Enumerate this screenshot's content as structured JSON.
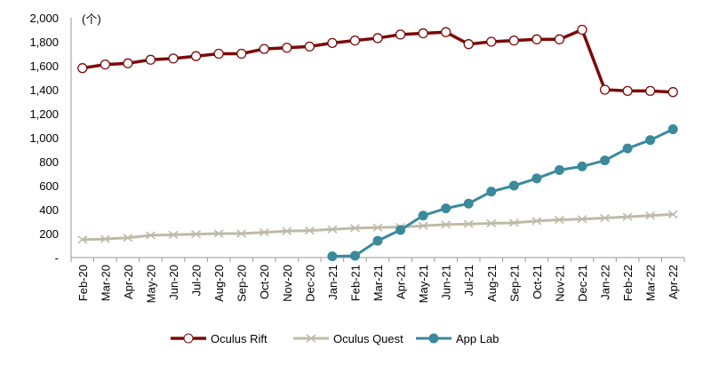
{
  "chart_data": {
    "type": "line",
    "title": "",
    "unit_label": "(个)",
    "xlabel": "",
    "ylabel": "",
    "ylim": [
      0,
      2000
    ],
    "yticks": [
      0,
      200,
      400,
      600,
      800,
      1000,
      1200,
      1400,
      1600,
      1800,
      2000
    ],
    "ytick_labels": [
      "-",
      "200",
      "400",
      "600",
      "800",
      "1,000",
      "1,200",
      "1,400",
      "1,600",
      "1,800",
      "2,000"
    ],
    "grid": false,
    "legend_position": "bottom",
    "categories": [
      "Feb-20",
      "Mar-20",
      "Apr-20",
      "May-20",
      "Jun-20",
      "Jul-20",
      "Aug-20",
      "Sep-20",
      "Oct-20",
      "Nov-20",
      "Dec-20",
      "Jan-21",
      "Feb-21",
      "Mar-21",
      "Apr-21",
      "May-21",
      "Jun-21",
      "Jul-21",
      "Aug-21",
      "Sep-21",
      "Oct-21",
      "Nov-21",
      "Dec-21",
      "Jan-22",
      "Feb-22",
      "Mar-22",
      "Apr-22"
    ],
    "series": [
      {
        "name": "Oculus Rift",
        "color": "#7B0A0A",
        "marker": "open-circle",
        "values": [
          1580,
          1610,
          1620,
          1650,
          1660,
          1680,
          1700,
          1700,
          1740,
          1750,
          1760,
          1790,
          1810,
          1830,
          1860,
          1870,
          1880,
          1780,
          1800,
          1810,
          1820,
          1820,
          1900,
          1400,
          1390,
          1390,
          1380
        ]
      },
      {
        "name": "Oculus Quest",
        "color": "#BDBBA8",
        "marker": "x",
        "values": [
          150,
          155,
          165,
          185,
          190,
          195,
          200,
          200,
          210,
          220,
          225,
          235,
          245,
          250,
          255,
          265,
          275,
          280,
          285,
          290,
          305,
          315,
          320,
          330,
          340,
          350,
          360
        ]
      },
      {
        "name": "App Lab",
        "color": "#3B8A9C",
        "marker": "filled-circle",
        "values": [
          null,
          null,
          null,
          null,
          null,
          null,
          null,
          null,
          null,
          null,
          null,
          10,
          15,
          140,
          230,
          350,
          410,
          450,
          550,
          600,
          660,
          730,
          760,
          810,
          910,
          980,
          1070
        ]
      }
    ]
  }
}
